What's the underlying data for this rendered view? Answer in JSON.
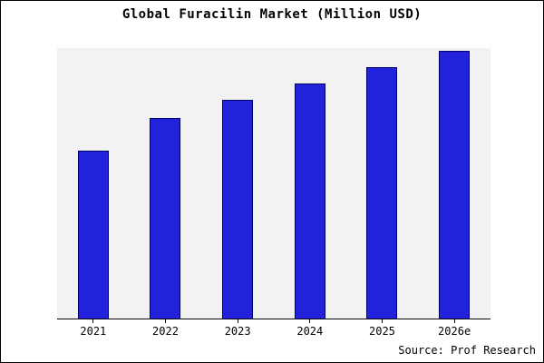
{
  "chart_data": {
    "type": "bar",
    "title": "Global Furacilin Market (Million USD)",
    "categories": [
      "2021",
      "2022",
      "2023",
      "2024",
      "2025",
      "2026e"
    ],
    "values": [
      62,
      74,
      81,
      87,
      93,
      99
    ],
    "xlabel": "",
    "ylabel": "",
    "ylim": [
      0,
      100
    ],
    "grid": false,
    "legend": "none",
    "bar_color": "#2222dd",
    "bar_border_color": "#000066",
    "plot_background": "#f2f2f2"
  },
  "source": {
    "credit": "Source: Prof Research"
  }
}
